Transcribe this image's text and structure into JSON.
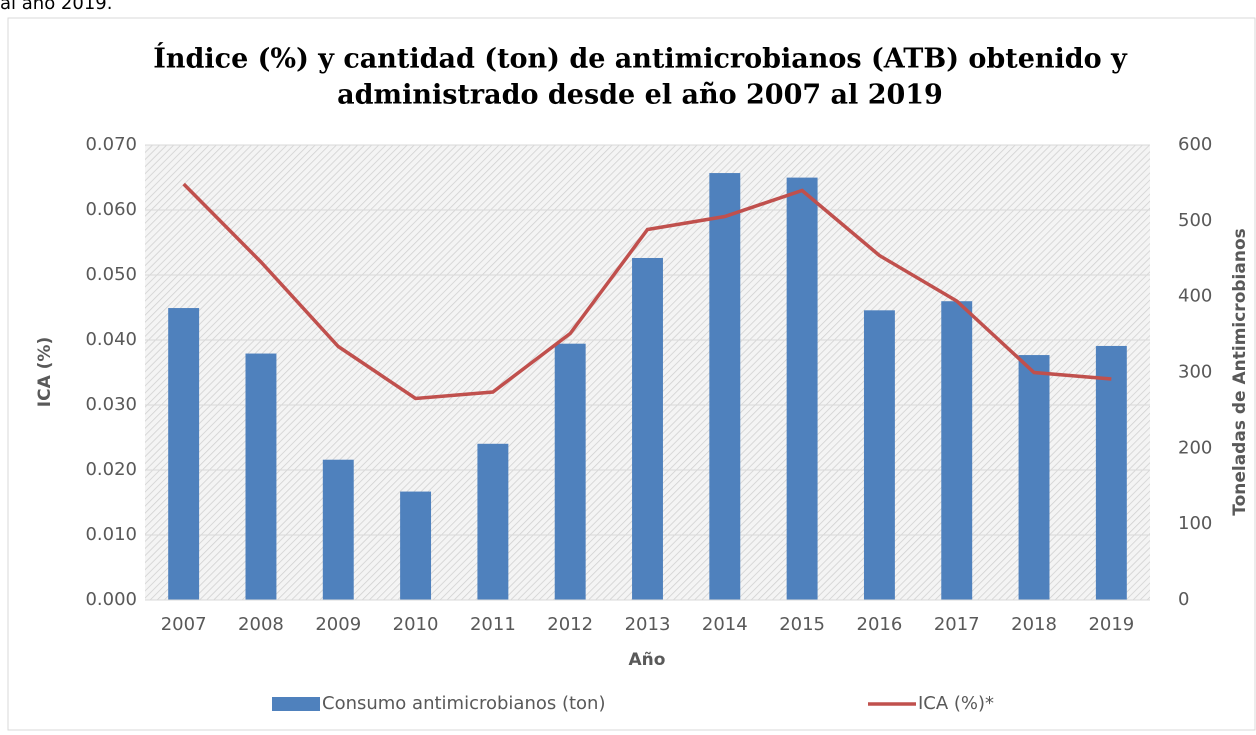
{
  "page_fragment": "al año 2019.",
  "chart_data": {
    "type": "bar-line",
    "title": [
      "Índice (%) y cantidad (ton) de antimicrobianos (ATB) obtenido y",
      "administrado desde el año 2007 al 2019"
    ],
    "x_label": "Año",
    "y_label": "ICA (%)",
    "y2_label": "Toneladas de Antimicrobianos",
    "categories": [
      "2007",
      "2008",
      "2009",
      "2010",
      "2011",
      "2012",
      "2013",
      "2014",
      "2015",
      "2016",
      "2017",
      "2018",
      "2019"
    ],
    "series": [
      {
        "name": "Consumo antimicrobianos (ton)",
        "type": "bar",
        "axis": "y2",
        "color": "#4f81bd",
        "values": [
          385,
          325,
          185,
          143,
          206,
          338,
          451,
          563,
          557,
          382,
          394,
          323,
          335
        ]
      },
      {
        "name": "ICA (%)*",
        "type": "line",
        "axis": "y",
        "color": "#c0504d",
        "values": [
          0.064,
          0.052,
          0.039,
          0.031,
          0.032,
          0.041,
          0.057,
          0.059,
          0.063,
          0.053,
          0.046,
          0.035,
          0.034
        ]
      }
    ],
    "ylim": [
      0,
      0.07
    ],
    "yticks": [
      {
        "value": 0,
        "label": "0.000"
      },
      {
        "value": 0.01,
        "label": "0.010"
      },
      {
        "value": 0.02,
        "label": "0.020"
      },
      {
        "value": 0.03,
        "label": "0.030"
      },
      {
        "value": 0.04,
        "label": "0.040"
      },
      {
        "value": 0.05,
        "label": "0.050"
      },
      {
        "value": 0.06,
        "label": "0.060"
      },
      {
        "value": 0.07,
        "label": "0.070"
      }
    ],
    "y2lim": [
      0,
      600
    ],
    "y2ticks": [
      0,
      100,
      200,
      300,
      400,
      500,
      600
    ],
    "legend": "bottom"
  }
}
